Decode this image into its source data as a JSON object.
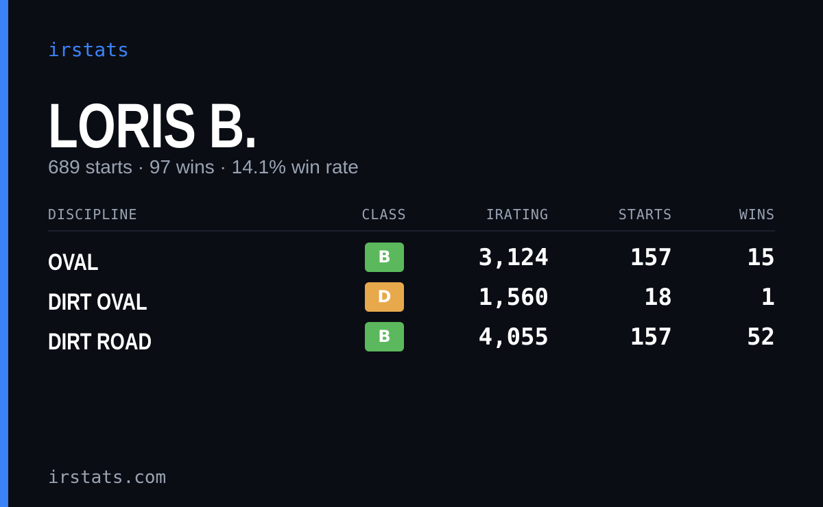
{
  "header": {
    "brand": "irstats",
    "name": "LORIS B.",
    "summary": "689 starts · 97 wins · 14.1% win rate"
  },
  "table": {
    "columns": [
      "DISCIPLINE",
      "CLASS",
      "IRATING",
      "STARTS",
      "WINS"
    ],
    "rows": [
      {
        "discipline": "OVAL",
        "class": "B",
        "class_color": "#5cb85c",
        "irating": "3,124",
        "starts": "157",
        "wins": "15"
      },
      {
        "discipline": "DIRT OVAL",
        "class": "D",
        "class_color": "#e8a94c",
        "irating": "1,560",
        "starts": "18",
        "wins": "1"
      },
      {
        "discipline": "DIRT ROAD",
        "class": "B",
        "class_color": "#5cb85c",
        "irating": "4,055",
        "starts": "157",
        "wins": "52"
      }
    ]
  },
  "footer": {
    "site": "irstats.com"
  }
}
